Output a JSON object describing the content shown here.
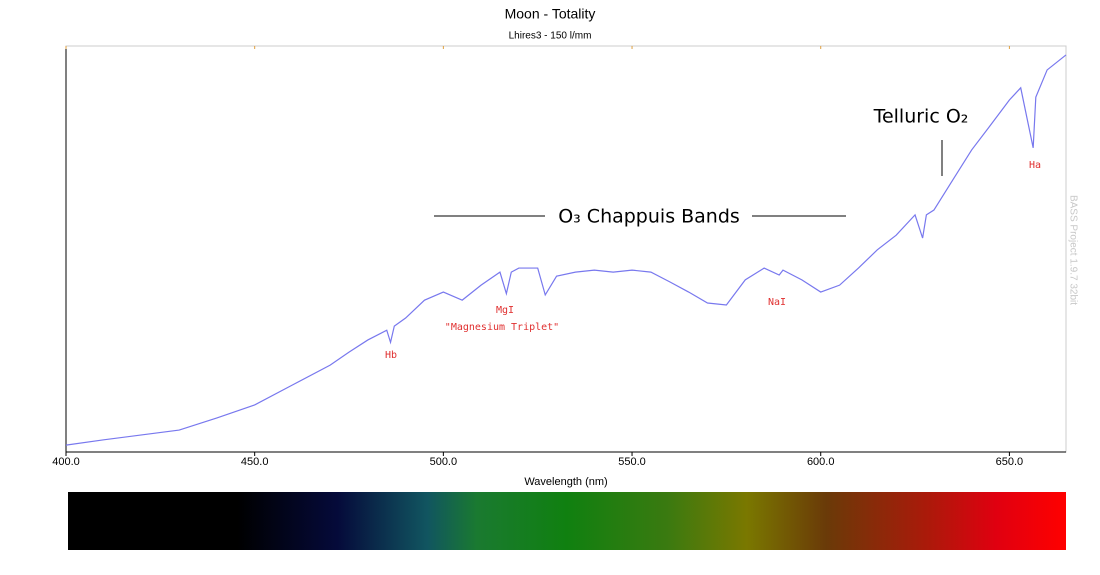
{
  "chart_data": {
    "type": "line",
    "title": "Moon - Totality",
    "subtitle": "Lhires3 - 150 l/mm",
    "x_label": "Wavelength (nm)",
    "watermark": "BASS Project 1.9.7 32bit",
    "annotations": [
      "Hb",
      "MgI",
      "\"Magnesium Triplet\"",
      "NaI",
      "Ha",
      "Telluric O₂",
      "O₃ Chappuis Bands"
    ],
    "xlim": [
      400,
      665
    ],
    "xticks": [
      {
        "value": 400,
        "label": "400.0"
      },
      {
        "value": 450,
        "label": "450.0"
      },
      {
        "value": 500,
        "label": "500.0"
      },
      {
        "value": 550,
        "label": "550.0"
      },
      {
        "value": 600,
        "label": "600.0"
      },
      {
        "value": 650,
        "label": "650.0"
      }
    ],
    "ylim": [
      0,
      1
    ],
    "series": [
      {
        "name": "Moon - Totality",
        "color": "#7878ee",
        "x": [
          400,
          410,
          420,
          430,
          440,
          450,
          460,
          470,
          475,
          480,
          485,
          486,
          487,
          490,
          495,
          500,
          505,
          510,
          515,
          516.7,
          518,
          520,
          525,
          527,
          530,
          535,
          540,
          545,
          550,
          555,
          560,
          565,
          570,
          575,
          580,
          585,
          589,
          590,
          595,
          600,
          605,
          610,
          615,
          620,
          625,
          627,
          628,
          630,
          635,
          640,
          645,
          650,
          653,
          656.3,
          657,
          660,
          665
        ],
        "values": [
          0.017,
          0.03,
          0.042,
          0.054,
          0.084,
          0.116,
          0.165,
          0.214,
          0.246,
          0.276,
          0.3,
          0.27,
          0.31,
          0.33,
          0.374,
          0.394,
          0.374,
          0.411,
          0.443,
          0.39,
          0.443,
          0.453,
          0.453,
          0.387,
          0.433,
          0.443,
          0.448,
          0.443,
          0.448,
          0.443,
          0.419,
          0.394,
          0.367,
          0.362,
          0.424,
          0.453,
          0.436,
          0.448,
          0.424,
          0.394,
          0.411,
          0.453,
          0.498,
          0.534,
          0.584,
          0.527,
          0.584,
          0.596,
          0.67,
          0.744,
          0.805,
          0.867,
          0.897,
          0.749,
          0.874,
          0.941,
          0.978
        ]
      }
    ]
  }
}
